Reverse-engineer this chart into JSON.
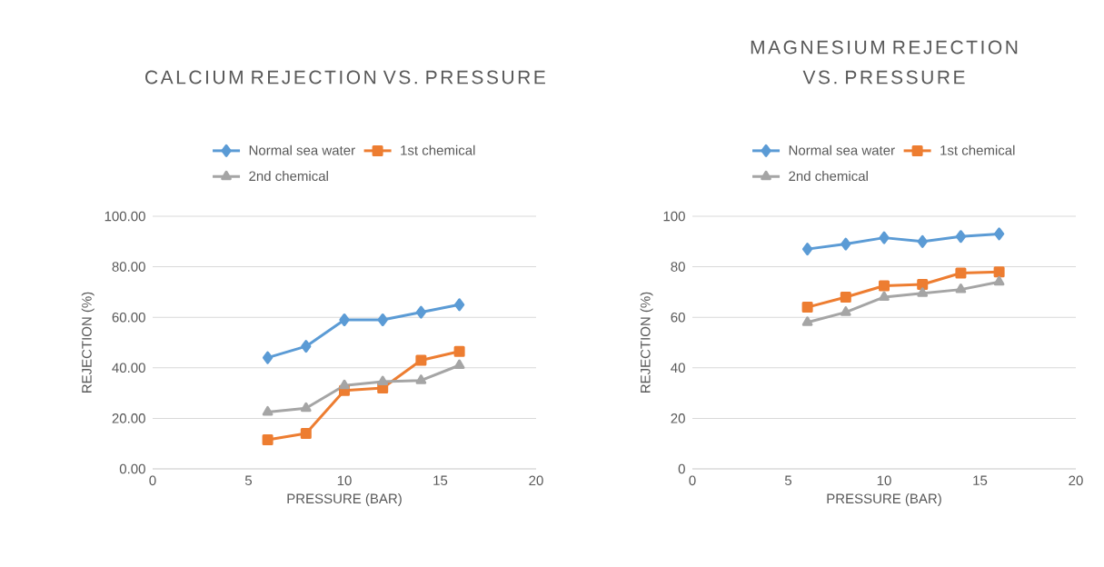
{
  "chart_data": [
    {
      "type": "line",
      "title": "CALCIUM REJECTION VS. PRESSURE",
      "xlabel": "PRESSURE (BAR)",
      "ylabel": "REJECTION (%)",
      "x": [
        6,
        8,
        10,
        12,
        14,
        16
      ],
      "series": [
        {
          "name": "Normal sea water",
          "color": "#5b9bd5",
          "marker": "diamond",
          "values": [
            44,
            48.5,
            59,
            59,
            62,
            65
          ]
        },
        {
          "name": "1st chemical",
          "color": "#ed7d31",
          "marker": "square",
          "values": [
            11.5,
            14,
            31,
            32,
            43,
            46.5
          ]
        },
        {
          "name": "2nd chemical",
          "color": "#a5a5a5",
          "marker": "triangle",
          "values": [
            22.5,
            24,
            33,
            34.5,
            35,
            41
          ]
        }
      ],
      "xlim": [
        0,
        20
      ],
      "xticks": [
        0,
        5,
        10,
        15,
        20
      ],
      "ylim": [
        0,
        100
      ],
      "yticks": [
        {
          "value": 0,
          "label": "0.00"
        },
        {
          "value": 20,
          "label": "20.00"
        },
        {
          "value": 40,
          "label": "40.00"
        },
        {
          "value": 60,
          "label": "60.00"
        },
        {
          "value": 80,
          "label": "80.00"
        },
        {
          "value": 100,
          "label": "100.00"
        }
      ],
      "grid": "y",
      "legend": "top",
      "line_style": "solid"
    },
    {
      "type": "line",
      "title": "MAGNESIUM REJECTION VS. PRESSURE",
      "xlabel": "PRESSURE (BAR)",
      "ylabel": "REJECTION (%)",
      "x": [
        6,
        8,
        10,
        12,
        14,
        16
      ],
      "series": [
        {
          "name": "Normal sea water",
          "color": "#5b9bd5",
          "marker": "diamond",
          "values": [
            87,
            89,
            91.5,
            90,
            92,
            93
          ]
        },
        {
          "name": "1st chemical",
          "color": "#ed7d31",
          "marker": "square",
          "values": [
            64,
            68,
            72.5,
            73,
            77.5,
            78
          ]
        },
        {
          "name": "2nd chemical",
          "color": "#a5a5a5",
          "marker": "triangle",
          "values": [
            58,
            62,
            68,
            69.5,
            71,
            74
          ]
        }
      ],
      "xlim": [
        0,
        20
      ],
      "xticks": [
        0,
        5,
        10,
        15,
        20
      ],
      "ylim": [
        0,
        100
      ],
      "yticks": [
        0,
        20,
        40,
        60,
        80,
        100
      ],
      "grid": "y",
      "legend": "top",
      "line_style": "solid"
    }
  ]
}
